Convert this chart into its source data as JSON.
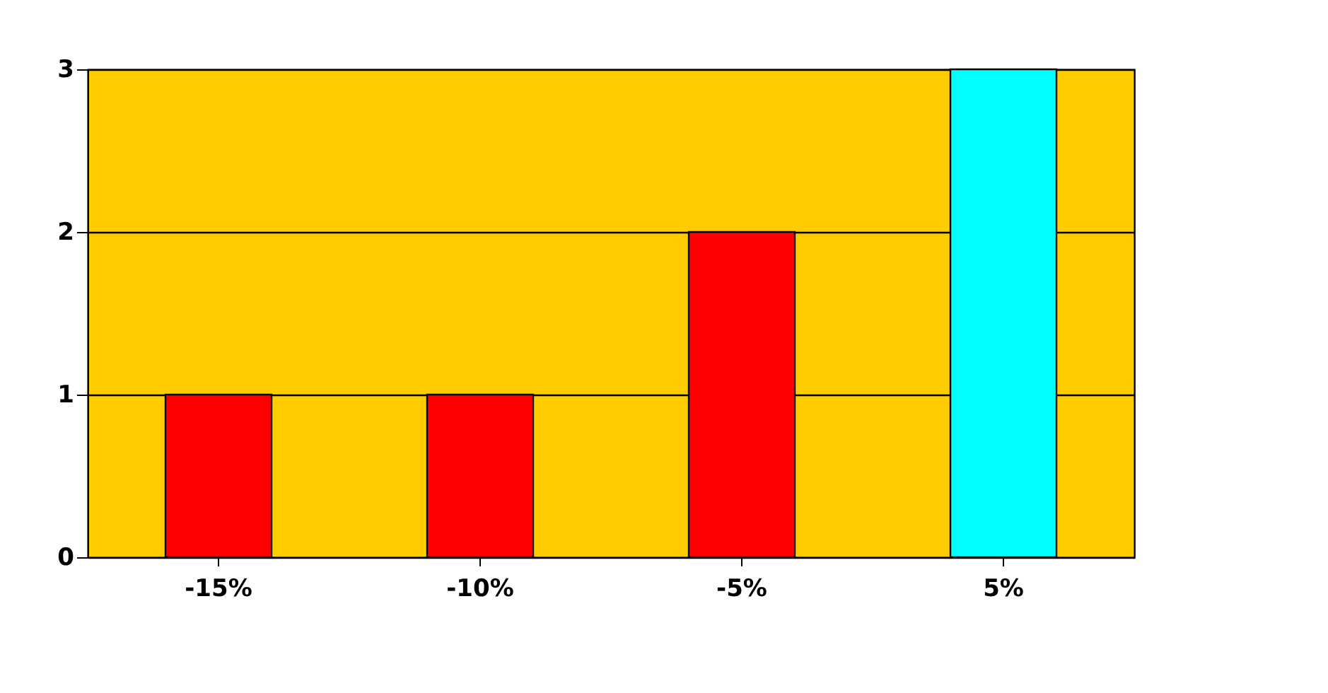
{
  "chart_data": {
    "type": "bar",
    "categories": [
      "-15%",
      "-10%",
      "-5%",
      "5%"
    ],
    "values": [
      1,
      1,
      2,
      3
    ],
    "colors": [
      "#ff0000",
      "#ff0000",
      "#ff0000",
      "#00ffff"
    ],
    "ylim": [
      0,
      3
    ],
    "yticks": [
      0,
      1,
      2,
      3
    ],
    "grid": "y"
  }
}
